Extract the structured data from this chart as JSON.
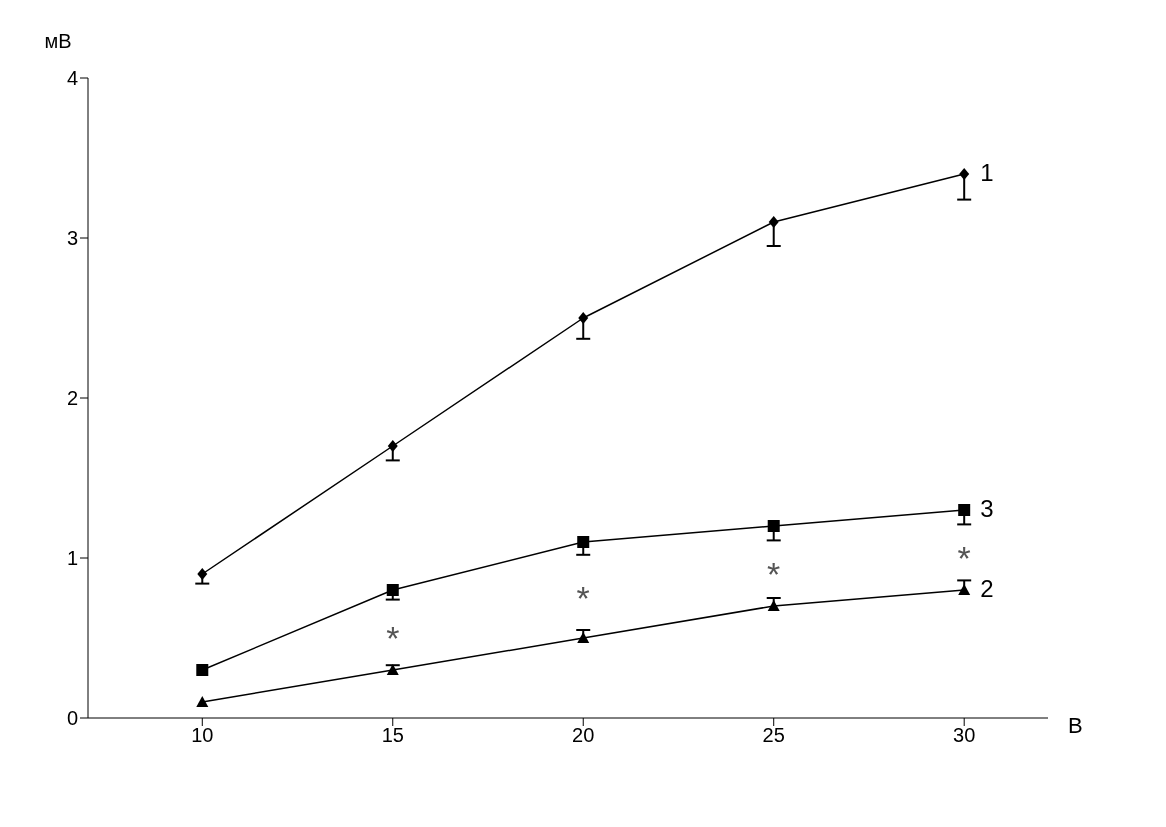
{
  "chart_data": {
    "type": "line",
    "xlabel": "В",
    "ylabel": "мВ",
    "x": [
      10,
      15,
      20,
      25,
      30
    ],
    "xlim": [
      7,
      32.2
    ],
    "xticks": [
      10,
      15,
      20,
      25,
      30
    ],
    "ylim": [
      0,
      4
    ],
    "yticks": [
      0,
      1,
      2,
      3,
      4
    ],
    "grid": false,
    "legend": "right",
    "series": [
      {
        "name": "1",
        "color": "#000000",
        "marker": "diamond",
        "values": [
          0.9,
          1.7,
          2.5,
          3.1,
          3.4
        ],
        "errors": [
          [
            0.84,
            0.9
          ],
          [
            1.61,
            1.7
          ],
          [
            2.37,
            2.5
          ],
          [
            2.95,
            3.1
          ],
          [
            3.24,
            3.4
          ]
        ]
      },
      {
        "name": "2",
        "color": "#000000",
        "marker": "triangle",
        "values": [
          0.1,
          0.3,
          0.5,
          0.7,
          0.8
        ],
        "errors": [
          null,
          [
            0.3,
            0.33
          ],
          [
            0.5,
            0.55
          ],
          [
            0.7,
            0.75
          ],
          [
            0.8,
            0.86
          ]
        ]
      },
      {
        "name": "3",
        "color": "#000000",
        "marker": "square",
        "values": [
          0.3,
          0.8,
          1.1,
          1.2,
          1.3
        ],
        "errors": [
          null,
          [
            0.74,
            0.8
          ],
          [
            1.02,
            1.1
          ],
          [
            1.11,
            1.2
          ],
          [
            1.21,
            1.3
          ]
        ]
      }
    ],
    "annotations": [
      "*",
      "*",
      "*",
      "*"
    ]
  }
}
